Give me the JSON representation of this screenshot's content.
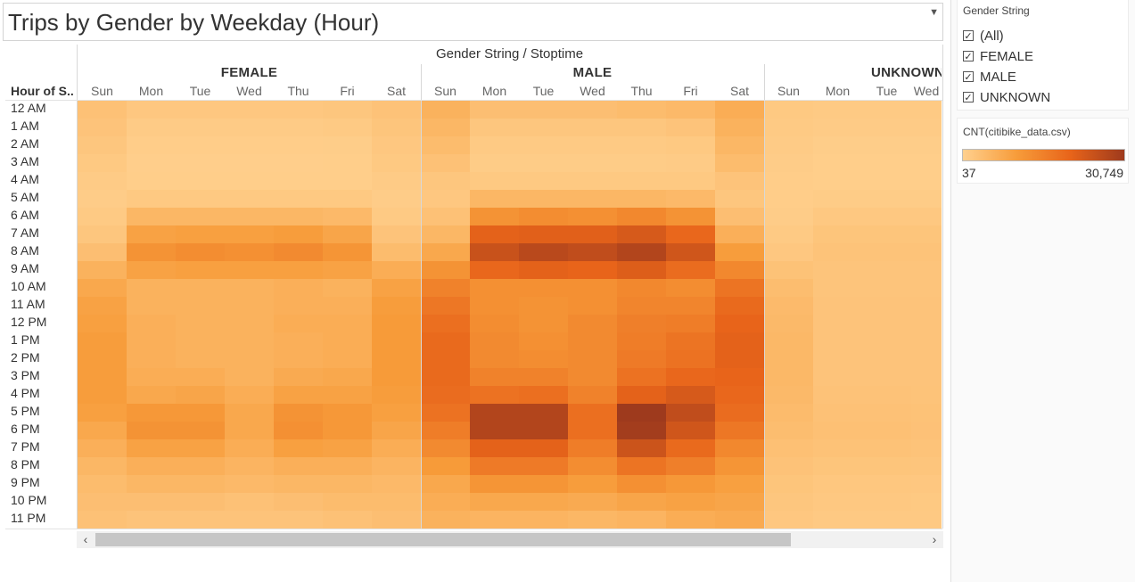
{
  "title": "Trips by Gender by Weekday (Hour)",
  "columns_title": "Gender String / Stoptime",
  "row_header": "Hour of S..",
  "hours": [
    "12 AM",
    "1 AM",
    "2 AM",
    "3 AM",
    "4 AM",
    "5 AM",
    "6 AM",
    "7 AM",
    "8 AM",
    "9 AM",
    "10 AM",
    "11 AM",
    "12 PM",
    "1 PM",
    "2 PM",
    "3 PM",
    "4 PM",
    "5 PM",
    "6 PM",
    "7 PM",
    "8 PM",
    "9 PM",
    "10 PM",
    "11 PM"
  ],
  "groups": [
    {
      "name": "FEMALE",
      "days": [
        "Sun",
        "Mon",
        "Tue",
        "Wed",
        "Thu",
        "Fri",
        "Sat"
      ]
    },
    {
      "name": "MALE",
      "days": [
        "Sun",
        "Mon",
        "Tue",
        "Wed",
        "Thu",
        "Fri",
        "Sat"
      ]
    },
    {
      "name": "UNKNOWN",
      "days": [
        "Sun",
        "Mon",
        "Tue",
        "Wed"
      ]
    }
  ],
  "filter": {
    "title": "Gender String",
    "items": [
      {
        "label": "(All)",
        "checked": true
      },
      {
        "label": "FEMALE",
        "checked": true
      },
      {
        "label": "MALE",
        "checked": true
      },
      {
        "label": "UNKNOWN",
        "checked": true
      }
    ]
  },
  "legend": {
    "title": "CNT(citibike_data.csv)",
    "min_label": "37",
    "max_label": "30,749",
    "colors": [
      "#ffd08e",
      "#f79c3a",
      "#e8641a",
      "#9e3a1d"
    ]
  },
  "scroll": {
    "left_icon": "chevron-left-icon",
    "right_icon": "chevron-right-icon"
  },
  "chart_data": {
    "type": "heatmap",
    "title": "Trips by Gender by Weekday (Hour)",
    "x_title": "Gender String / Stoptime",
    "y_title": "Hour of S..",
    "value_range": [
      37,
      30749
    ],
    "rows": [
      "12 AM",
      "1 AM",
      "2 AM",
      "3 AM",
      "4 AM",
      "5 AM",
      "6 AM",
      "7 AM",
      "8 AM",
      "9 AM",
      "10 AM",
      "11 AM",
      "12 PM",
      "1 PM",
      "2 PM",
      "3 PM",
      "4 PM",
      "5 PM",
      "6 PM",
      "7 PM",
      "8 PM",
      "9 PM",
      "10 PM",
      "11 PM"
    ],
    "series": [
      {
        "name": "FEMALE",
        "columns": [
          "Sun",
          "Mon",
          "Tue",
          "Wed",
          "Thu",
          "Fri",
          "Sat"
        ],
        "values": [
          [
            3000,
            1800,
            1800,
            1800,
            1800,
            2000,
            2700
          ],
          [
            2500,
            1000,
            1000,
            1000,
            1000,
            1200,
            2200
          ],
          [
            2000,
            600,
            600,
            600,
            600,
            700,
            1800
          ],
          [
            1500,
            400,
            400,
            400,
            400,
            500,
            1500
          ],
          [
            1000,
            500,
            500,
            500,
            500,
            500,
            1000
          ],
          [
            800,
            1500,
            1500,
            1500,
            1500,
            1500,
            800
          ],
          [
            1200,
            5000,
            5000,
            5000,
            5000,
            4500,
            1200
          ],
          [
            2000,
            9000,
            9500,
            9500,
            10000,
            8500,
            2500
          ],
          [
            3500,
            12000,
            13000,
            12500,
            13500,
            11500,
            4000
          ],
          [
            6000,
            9000,
            9500,
            9500,
            9500,
            9000,
            7000
          ],
          [
            8000,
            6000,
            6000,
            6000,
            6500,
            6000,
            9000
          ],
          [
            9000,
            6000,
            6000,
            6000,
            6500,
            6500,
            10000
          ],
          [
            9500,
            6500,
            6000,
            6000,
            7000,
            7000,
            10500
          ],
          [
            10000,
            6500,
            6000,
            6000,
            6500,
            7000,
            10500
          ],
          [
            10000,
            6500,
            6000,
            6000,
            6500,
            7000,
            10500
          ],
          [
            10000,
            7000,
            7000,
            6000,
            7500,
            8000,
            10500
          ],
          [
            10000,
            8000,
            8500,
            7000,
            9000,
            9000,
            10000
          ],
          [
            9500,
            11000,
            11000,
            8000,
            12000,
            11000,
            9500
          ],
          [
            8000,
            12000,
            12000,
            8000,
            12500,
            11000,
            8500
          ],
          [
            6500,
            9000,
            9000,
            7000,
            9500,
            9000,
            7000
          ],
          [
            5000,
            6500,
            6500,
            5500,
            6500,
            6500,
            5500
          ],
          [
            4000,
            5000,
            5000,
            4500,
            5000,
            5000,
            4500
          ],
          [
            3500,
            3500,
            3500,
            3000,
            3500,
            4000,
            4000
          ],
          [
            3000,
            2500,
            2500,
            2500,
            2500,
            3000,
            3500
          ]
        ]
      },
      {
        "name": "MALE",
        "columns": [
          "Sun",
          "Mon",
          "Tue",
          "Wed",
          "Thu",
          "Fri",
          "Sat"
        ],
        "values": [
          [
            6000,
            3500,
            3500,
            3500,
            4000,
            4500,
            7000
          ],
          [
            5000,
            2000,
            2000,
            2000,
            2000,
            2500,
            6000
          ],
          [
            4000,
            1200,
            1200,
            1200,
            1200,
            1500,
            5000
          ],
          [
            3000,
            900,
            900,
            900,
            900,
            1000,
            4000
          ],
          [
            2000,
            1500,
            1500,
            1500,
            1500,
            1500,
            2500
          ],
          [
            1800,
            5000,
            5000,
            5000,
            5000,
            4500,
            2000
          ],
          [
            3000,
            12000,
            13000,
            12500,
            14000,
            12000,
            3500
          ],
          [
            5000,
            21000,
            21500,
            21500,
            23000,
            20000,
            6500
          ],
          [
            8000,
            25000,
            27000,
            26000,
            28000,
            24000,
            10000
          ],
          [
            12000,
            20000,
            21000,
            20500,
            22000,
            19000,
            14000
          ],
          [
            15000,
            12500,
            12500,
            12500,
            14000,
            13000,
            17500
          ],
          [
            17000,
            12500,
            12000,
            12500,
            14500,
            14500,
            19500
          ],
          [
            18500,
            13000,
            12000,
            13500,
            15500,
            16000,
            20500
          ],
          [
            19500,
            13500,
            12500,
            13500,
            16000,
            17500,
            21000
          ],
          [
            19500,
            13500,
            13000,
            13500,
            16500,
            18000,
            21000
          ],
          [
            19500,
            15000,
            15000,
            13500,
            18000,
            20000,
            20500
          ],
          [
            19000,
            18000,
            18500,
            15000,
            21000,
            23000,
            20000
          ],
          [
            18000,
            28000,
            28000,
            18500,
            30749,
            26000,
            19000
          ],
          [
            16000,
            28000,
            28000,
            18500,
            30000,
            24000,
            17000
          ],
          [
            13500,
            21000,
            21000,
            16000,
            24500,
            19500,
            14000
          ],
          [
            10500,
            16500,
            16500,
            13000,
            17500,
            15500,
            11500
          ],
          [
            8000,
            11500,
            11500,
            10000,
            12500,
            11000,
            9500
          ],
          [
            7000,
            8000,
            8000,
            7500,
            8500,
            9000,
            8500
          ],
          [
            6000,
            5500,
            5500,
            5000,
            5500,
            7000,
            7500
          ]
        ]
      },
      {
        "name": "UNKNOWN",
        "columns": [
          "Sun",
          "Mon",
          "Tue",
          "Wed"
        ],
        "values": [
          [
            1500,
            1200,
            1200,
            1200
          ],
          [
            1300,
            1000,
            1000,
            1000
          ],
          [
            1000,
            700,
            700,
            700
          ],
          [
            800,
            500,
            500,
            500
          ],
          [
            600,
            500,
            500,
            500
          ],
          [
            600,
            900,
            900,
            900
          ],
          [
            800,
            1600,
            1600,
            1600
          ],
          [
            1200,
            2300,
            2300,
            2300
          ],
          [
            1800,
            2600,
            2600,
            2600
          ],
          [
            2800,
            2400,
            2400,
            2400
          ],
          [
            3800,
            2400,
            2400,
            2400
          ],
          [
            4300,
            2500,
            2500,
            2500
          ],
          [
            4600,
            2500,
            2500,
            2500
          ],
          [
            4800,
            2500,
            2500,
            2500
          ],
          [
            4800,
            2500,
            2500,
            2500
          ],
          [
            4800,
            2500,
            2500,
            2500
          ],
          [
            4600,
            2700,
            2700,
            2600
          ],
          [
            4200,
            3000,
            3000,
            2800
          ],
          [
            3800,
            3200,
            3200,
            2900
          ],
          [
            3200,
            2800,
            2800,
            2600
          ],
          [
            2700,
            2300,
            2300,
            2200
          ],
          [
            2300,
            1900,
            1900,
            1800
          ],
          [
            2000,
            1600,
            1600,
            1500
          ],
          [
            1800,
            1400,
            1400,
            1400
          ]
        ]
      }
    ]
  }
}
